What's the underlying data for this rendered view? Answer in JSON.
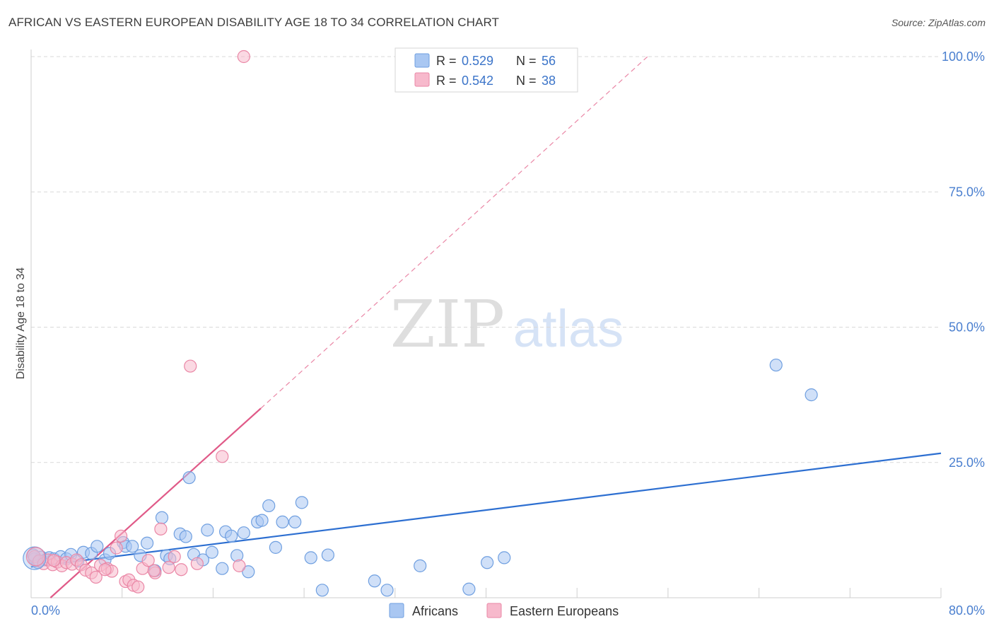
{
  "title": "AFRICAN VS EASTERN EUROPEAN DISABILITY AGE 18 TO 34 CORRELATION CHART",
  "source": "Source: ZipAtlas.com",
  "watermark": {
    "zip": "ZIP",
    "atlas": "atlas"
  },
  "colors": {
    "africans_fill": "#a9c7f2",
    "africans_stroke": "#6f9fe0",
    "africans_line": "#2d6fd1",
    "eastern_fill": "#f7b9cc",
    "eastern_stroke": "#ea87a6",
    "eastern_line": "#e05a88",
    "tick_label": "#4a7fcf",
    "grid": "#d9d9d9"
  },
  "legend": {
    "rows": [
      {
        "r_label": "R = ",
        "r_value": "0.529",
        "n_label": "N = ",
        "n_value": "56"
      },
      {
        "r_label": "R = ",
        "r_value": "0.542",
        "n_label": "N = ",
        "n_value": "38"
      }
    ]
  },
  "chart_data": {
    "type": "scatter",
    "title": "AFRICAN VS EASTERN EUROPEAN DISABILITY AGE 18 TO 34 CORRELATION CHART",
    "xlabel": "",
    "ylabel": "Disability Age 18 to 34",
    "xlim": [
      0,
      80
    ],
    "ylim": [
      0,
      100
    ],
    "x_tick_labels": [
      "0.0%",
      "80.0%"
    ],
    "y_ticks": [
      25,
      50,
      75,
      100
    ],
    "y_tick_labels": [
      "25.0%",
      "50.0%",
      "75.0%",
      "100.0%"
    ],
    "grid": true,
    "legend_position": "top-center",
    "series": [
      {
        "name": "Africans",
        "points": [
          [
            0.3,
            7.2
          ],
          [
            0.6,
            6.5
          ],
          [
            0.9,
            7.5
          ],
          [
            1.3,
            7.0
          ],
          [
            1.6,
            7.4
          ],
          [
            2.0,
            7.2
          ],
          [
            2.6,
            7.6
          ],
          [
            3.1,
            7.2
          ],
          [
            3.5,
            8.0
          ],
          [
            4.1,
            6.8
          ],
          [
            4.6,
            8.4
          ],
          [
            5.3,
            8.2
          ],
          [
            5.8,
            9.5
          ],
          [
            6.5,
            7.0
          ],
          [
            6.9,
            8.2
          ],
          [
            8.1,
            10.2
          ],
          [
            8.3,
            9.5
          ],
          [
            8.9,
            9.5
          ],
          [
            9.6,
            7.8
          ],
          [
            10.2,
            10.1
          ],
          [
            10.9,
            5.0
          ],
          [
            11.5,
            14.8
          ],
          [
            11.9,
            7.8
          ],
          [
            12.2,
            7.2
          ],
          [
            13.1,
            11.8
          ],
          [
            13.6,
            11.3
          ],
          [
            13.9,
            22.2
          ],
          [
            14.3,
            8.0
          ],
          [
            15.1,
            7.0
          ],
          [
            15.5,
            12.5
          ],
          [
            15.9,
            8.4
          ],
          [
            16.8,
            5.4
          ],
          [
            17.1,
            12.2
          ],
          [
            17.6,
            11.4
          ],
          [
            18.1,
            7.8
          ],
          [
            18.7,
            12.0
          ],
          [
            19.1,
            4.8
          ],
          [
            19.9,
            14.0
          ],
          [
            20.3,
            14.3
          ],
          [
            20.9,
            17.0
          ],
          [
            21.5,
            9.3
          ],
          [
            22.1,
            14.0
          ],
          [
            23.2,
            14.0
          ],
          [
            23.8,
            17.6
          ],
          [
            24.6,
            7.4
          ],
          [
            25.6,
            1.4
          ],
          [
            26.1,
            7.9
          ],
          [
            30.2,
            3.1
          ],
          [
            31.3,
            1.4
          ],
          [
            34.2,
            5.9
          ],
          [
            38.5,
            1.6
          ],
          [
            40.1,
            6.5
          ],
          [
            41.6,
            7.4
          ],
          [
            65.5,
            43.0
          ],
          [
            68.6,
            37.5
          ],
          [
            0.2,
            7.9
          ]
        ],
        "trend": {
          "x0": 0,
          "y0": 5.7,
          "x1": 80,
          "y1": 26.7
        }
      },
      {
        "name": "Eastern Europeans",
        "points": [
          [
            0.3,
            7.6
          ],
          [
            0.7,
            6.8
          ],
          [
            1.1,
            6.3
          ],
          [
            1.5,
            7.0
          ],
          [
            1.9,
            6.1
          ],
          [
            2.3,
            6.6
          ],
          [
            2.7,
            5.9
          ],
          [
            3.1,
            6.5
          ],
          [
            3.6,
            6.2
          ],
          [
            4.0,
            7.0
          ],
          [
            4.4,
            6.1
          ],
          [
            4.8,
            5.1
          ],
          [
            5.3,
            4.6
          ],
          [
            5.7,
            3.8
          ],
          [
            6.1,
            6.0
          ],
          [
            6.7,
            5.4
          ],
          [
            7.1,
            4.9
          ],
          [
            7.5,
            9.2
          ],
          [
            7.9,
            11.4
          ],
          [
            8.3,
            3.0
          ],
          [
            8.6,
            3.3
          ],
          [
            9.0,
            2.3
          ],
          [
            9.4,
            2.0
          ],
          [
            9.8,
            5.4
          ],
          [
            10.3,
            6.9
          ],
          [
            10.9,
            4.6
          ],
          [
            11.4,
            12.7
          ],
          [
            12.1,
            5.6
          ],
          [
            12.6,
            7.6
          ],
          [
            13.2,
            5.2
          ],
          [
            14.0,
            42.8
          ],
          [
            14.6,
            6.3
          ],
          [
            16.8,
            26.1
          ],
          [
            18.3,
            5.9
          ],
          [
            18.7,
            100.0
          ],
          [
            10.8,
            5.0
          ],
          [
            6.5,
            5.2
          ],
          [
            2.0,
            6.9
          ]
        ],
        "trend": {
          "x0": 1.7,
          "y0": 0,
          "x1": 20.2,
          "y1": 35.0
        },
        "trend_extension": {
          "x0": 20.2,
          "y0": 35.0,
          "x1": 54.2,
          "y1": 100.0
        }
      }
    ]
  }
}
